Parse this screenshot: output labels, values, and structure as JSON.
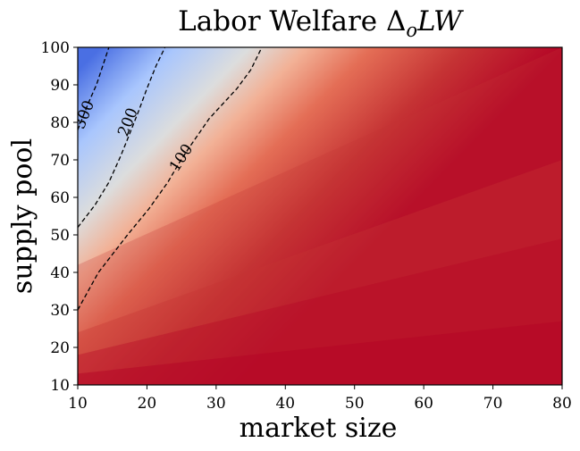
{
  "chart_data": {
    "type": "heatmap",
    "title": "Labor Welfare ΔoLW",
    "title_parts": {
      "prefix": "Labor Welfare Δ",
      "subscript": "o",
      "suffix": "LW"
    },
    "xlabel": "market size",
    "ylabel": "supply pool",
    "xlim": [
      10,
      80
    ],
    "ylim": [
      10,
      100
    ],
    "xticks": [
      "10",
      "20",
      "30",
      "40",
      "50",
      "60",
      "70",
      "80"
    ],
    "yticks": [
      "10",
      "20",
      "30",
      "40",
      "50",
      "60",
      "70",
      "80",
      "90",
      "100"
    ],
    "colormap": "coolwarm",
    "grid": false,
    "contours": [
      {
        "level": "300",
        "points": [
          [
            10,
            78
          ],
          [
            11.5,
            85
          ],
          [
            12.7,
            90
          ],
          [
            13.6,
            95
          ],
          [
            14.5,
            100
          ]
        ],
        "label_at": [
          11,
          82
        ]
      },
      {
        "level": "200",
        "points": [
          [
            10,
            52
          ],
          [
            12.5,
            58
          ],
          [
            14.5,
            64
          ],
          [
            16.2,
            71
          ],
          [
            17.3,
            76
          ],
          [
            18.8,
            83
          ],
          [
            20,
            89
          ],
          [
            21.3,
            95
          ],
          [
            22.6,
            100
          ]
        ],
        "label_at": [
          17.3,
          80
        ]
      },
      {
        "level": "100",
        "points": [
          [
            10,
            30
          ],
          [
            13,
            40
          ],
          [
            17.2,
            50
          ],
          [
            20.3,
            57
          ],
          [
            23,
            64
          ],
          [
            24.6,
            69
          ],
          [
            26,
            73
          ],
          [
            29,
            81
          ],
          [
            33,
            89
          ],
          [
            35,
            94
          ],
          [
            36.6,
            100
          ]
        ],
        "label_at": [
          25,
          70.5
        ]
      }
    ]
  },
  "colors": {
    "deep_blue": "#4a6fe3",
    "light_blue": "#a9c6fd",
    "pale": "#dcdddd",
    "peach": "#f2b196",
    "salmon": "#e46e56",
    "red": "#c53334",
    "deep_red": "#b40426"
  }
}
